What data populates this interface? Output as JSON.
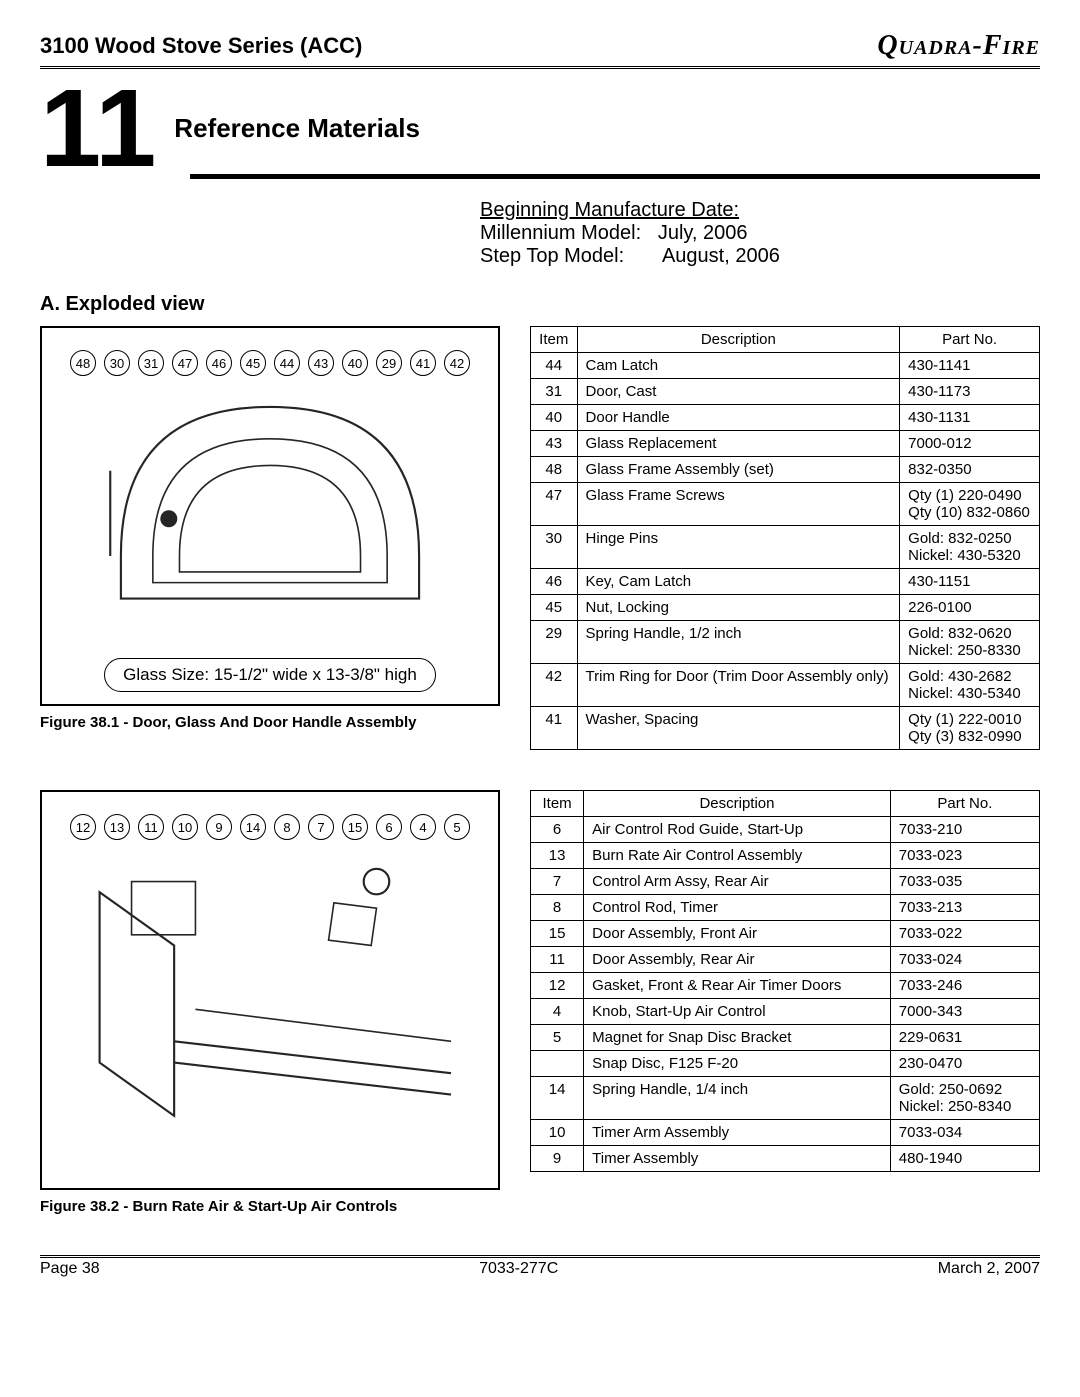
{
  "header": {
    "series": "3100 Wood Stove Series (ACC)",
    "brand": "Quadra-Fire"
  },
  "section": {
    "number": "11",
    "title": "Reference Materials"
  },
  "dates": {
    "heading": "Beginning  Manufacture Date:",
    "line1_label": "Millennium Model:",
    "line1_value": "July, 2006",
    "line2_label": "Step Top Model:",
    "line2_value": "August, 2006"
  },
  "subsection": "A.  Exploded view",
  "figure1": {
    "callouts": [
      "48",
      "30",
      "31",
      "47",
      "46",
      "45",
      "44",
      "43",
      "40",
      "29",
      "41",
      "42"
    ],
    "glass_size": "Glass Size:  15-1/2\" wide x 13-3/8\" high",
    "caption": "Figure 38.1 - Door, Glass And Door Handle Assembly"
  },
  "figure2": {
    "callouts": [
      "12",
      "13",
      "11",
      "10",
      "9",
      "14",
      "8",
      "7",
      "15",
      "6",
      "4",
      "5"
    ],
    "caption": "Figure 38.2 - Burn Rate Air & Start-Up Air Controls"
  },
  "table1": {
    "columns": [
      "Item",
      "Description",
      "Part No."
    ],
    "rows": [
      [
        "44",
        "Cam Latch",
        "430-1141"
      ],
      [
        "31",
        "Door, Cast",
        "430-1173"
      ],
      [
        "40",
        "Door Handle",
        "430-1131"
      ],
      [
        "43",
        "Glass Replacement",
        "7000-012"
      ],
      [
        "48",
        "Glass Frame Assembly (set)",
        "832-0350"
      ],
      [
        "47",
        "Glass Frame Screws",
        "Qty (1) 220-0490\nQty (10) 832-0860"
      ],
      [
        "30",
        "Hinge Pins",
        "Gold: 832-0250\nNickel: 430-5320"
      ],
      [
        "46",
        "Key, Cam Latch",
        "430-1151"
      ],
      [
        "45",
        "Nut, Locking",
        "226-0100"
      ],
      [
        "29",
        "Spring Handle, 1/2 inch",
        "Gold: 832-0620\nNickel: 250-8330"
      ],
      [
        "42",
        "Trim Ring for Door (Trim Door Assembly only)",
        "Gold: 430-2682\nNickel: 430-5340"
      ],
      [
        "41",
        "Washer, Spacing",
        "Qty (1) 222-0010\nQty (3) 832-0990"
      ]
    ]
  },
  "table2": {
    "columns": [
      "Item",
      "Description",
      "Part No."
    ],
    "rows": [
      [
        "6",
        "Air Control Rod Guide, Start-Up",
        "7033-210"
      ],
      [
        "13",
        "Burn Rate Air Control Assembly",
        "7033-023"
      ],
      [
        "7",
        "Control Arm Assy, Rear Air",
        "7033-035"
      ],
      [
        "8",
        "Control Rod, Timer",
        "7033-213"
      ],
      [
        "15",
        "Door Assembly, Front Air",
        "7033-022"
      ],
      [
        "11",
        "Door Assembly, Rear Air",
        "7033-024"
      ],
      [
        "12",
        "Gasket, Front & Rear Air Timer Doors",
        "7033-246"
      ],
      [
        "4",
        "Knob, Start-Up Air Control",
        "7000-343"
      ],
      [
        "5",
        "Magnet for Snap Disc Bracket",
        "229-0631"
      ],
      [
        "",
        "Snap Disc, F125 F-20",
        "230-0470"
      ],
      [
        "14",
        "Spring Handle, 1/4 inch",
        "Gold: 250-0692\nNickel: 250-8340"
      ],
      [
        "10",
        "Timer Arm Assembly",
        "7033-034"
      ],
      [
        "9",
        "Timer Assembly",
        "480-1940"
      ]
    ]
  },
  "footer": {
    "page": "Page  38",
    "doc": "7033-277C",
    "date": "March 2, 2007"
  },
  "colors": {
    "text": "#000000",
    "bg": "#ffffff",
    "rule": "#000000"
  }
}
